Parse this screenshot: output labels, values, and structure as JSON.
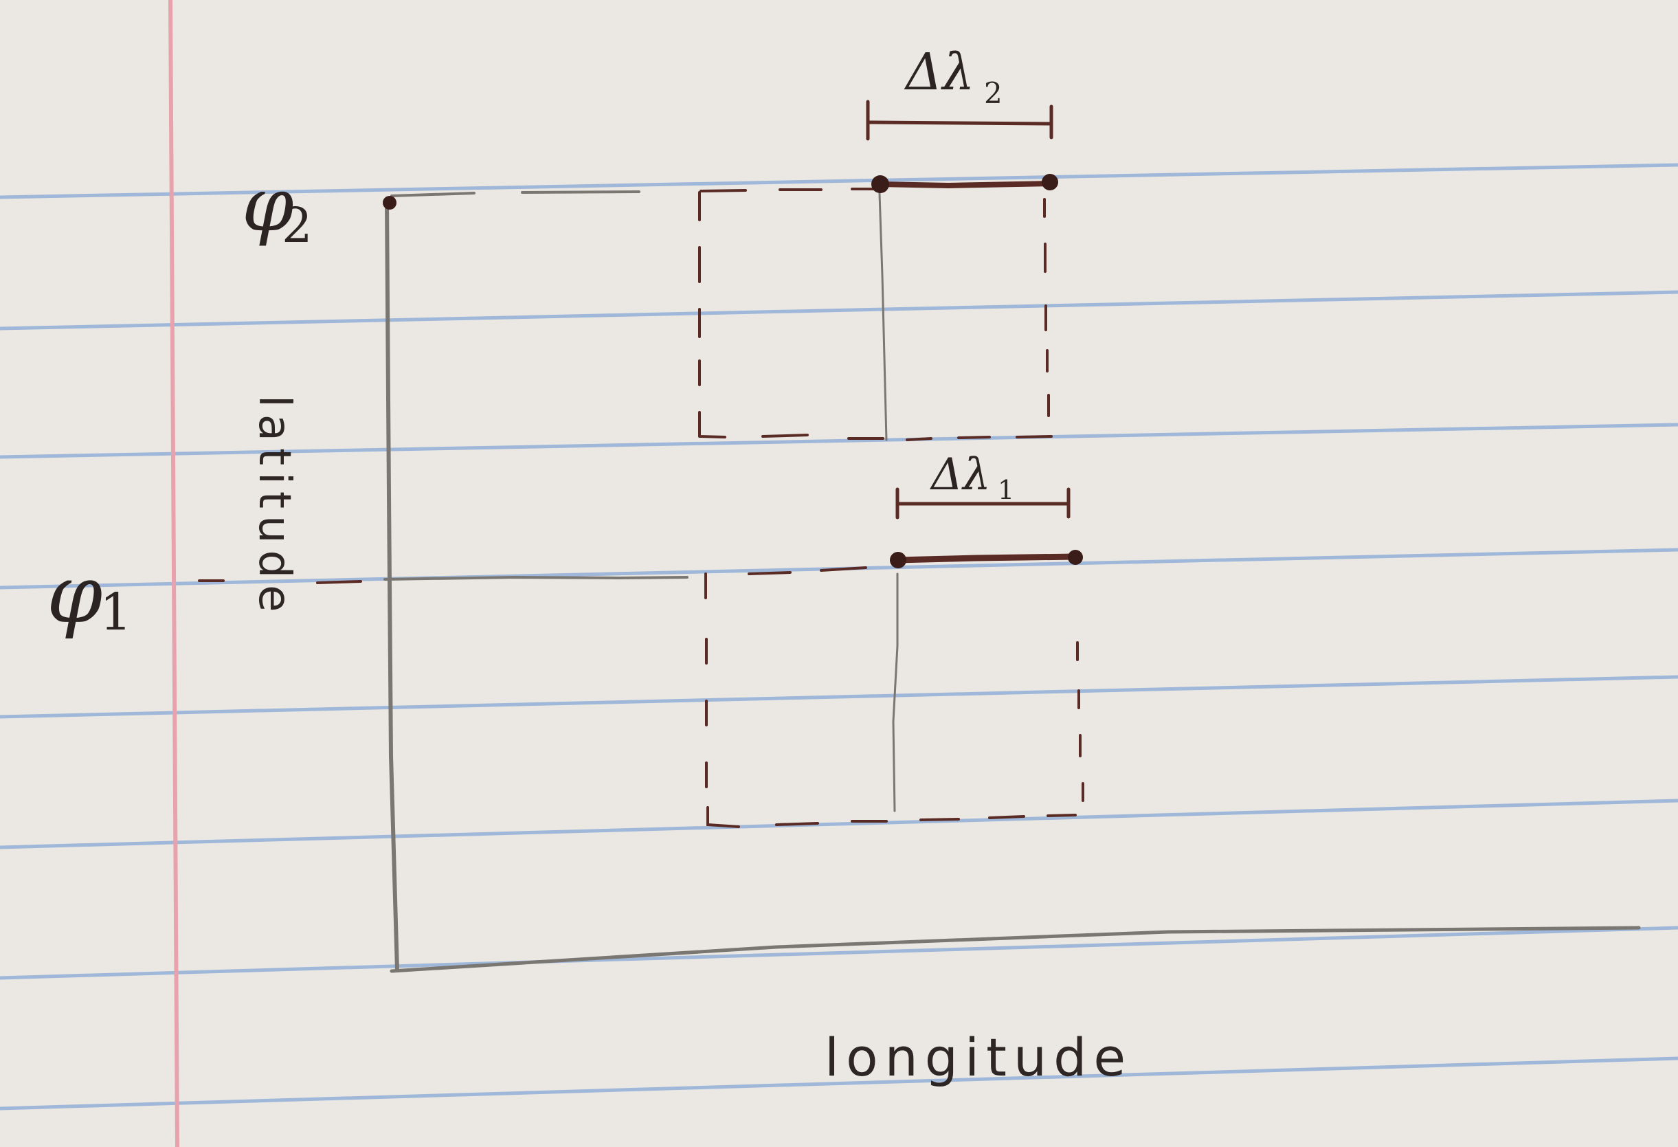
{
  "colors": {
    "paper": "#ebe8e3",
    "rule_line": "#9fb7d8",
    "margin_line": "#e8a2ad",
    "pencil": "#7a7672",
    "ink": "#5a2a24",
    "ink_dark": "#3a1c18"
  },
  "labels": {
    "phi_top": "φ",
    "phi_top_sub": "2",
    "phi_bottom": "φ",
    "phi_bottom_sub": "1",
    "lambda_top": "Δλ",
    "lambda_top_sub": "2",
    "lambda_bottom": "Δλ",
    "lambda_bottom_sub": "1",
    "y_axis": "latitude",
    "x_axis": "longitude"
  }
}
